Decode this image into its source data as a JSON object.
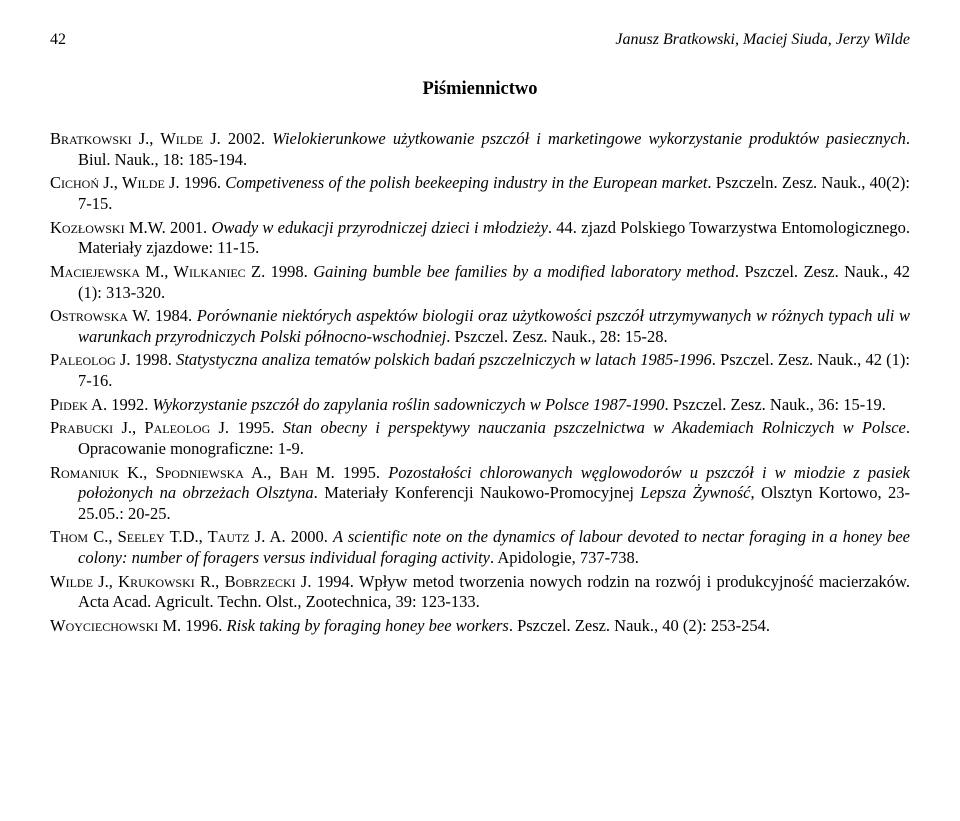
{
  "page_number": "42",
  "running_head": "Janusz Bratkowski, Maciej Siuda, Jerzy Wilde",
  "section_title": "Piśmiennictwo",
  "refs": {
    "r1": {
      "authors": "Bratkowski J., Wilde J.",
      "rest_a": " 2002. ",
      "title": "Wielokierunkowe użytkowanie pszczół i marketingowe wykorzystanie produktów pasiecznych",
      "rest_b": ". Biul. Nauk., 18: 185-194."
    },
    "r2": {
      "authors": "Cichoń J., Wilde J.",
      "rest_a": " 1996. ",
      "title": "Competiveness of the polish beekeeping industry in the European market",
      "rest_b": ". Pszczeln. Zesz. Nauk., 40(2): 7-15."
    },
    "r3": {
      "authors": "Kozłowski M.W.",
      "rest_a": " 2001. ",
      "title": "Owady w edukacji przyrodniczej dzieci i młodzieży",
      "rest_b": ". 44. zjazd Polskiego Towarzystwa Entomologicznego. Materiały zjazdowe: 11-15."
    },
    "r4": {
      "authors": "Maciejewska M., Wilkaniec Z.",
      "rest_a": " 1998. ",
      "title": "Gaining bumble bee families by a modified laboratory method",
      "rest_b": ". Pszczel. Zesz. Nauk., 42 (1): 313-320."
    },
    "r5": {
      "authors": "Ostrowska W.",
      "rest_a": " 1984. ",
      "title": "Porównanie niektórych aspektów biologii oraz użytkowości pszczół utrzymywanych w różnych typach uli w warunkach przyrodniczych Polski północno-wschodniej",
      "rest_b": ". Pszczel. Zesz. Nauk., 28: 15-28."
    },
    "r6": {
      "authors": "Paleolog J.",
      "rest_a": " 1998. ",
      "title": "Statystyczna analiza tematów polskich badań pszczelniczych w latach 1985-1996",
      "rest_b": ". Pszczel. Zesz. Nauk., 42 (1): 7-16."
    },
    "r7": {
      "authors": "Pidek A.",
      "rest_a": " 1992. ",
      "title": "Wykorzystanie pszczół do zapylania roślin sadowniczych w Polsce 1987-1990",
      "rest_b": ". Pszczel. Zesz. Nauk., 36: 15-19."
    },
    "r8": {
      "authors": "Prabucki J., Paleolog J.",
      "rest_a": " 1995. ",
      "title": "Stan obecny i perspektywy nauczania pszczelnictwa w Akademiach Rolniczych w Polsce",
      "rest_b": ". Opracowanie monograficzne: 1-9."
    },
    "r9": {
      "authors": "Romaniuk K., Spodniewska A., Bah M.",
      "rest_a": " 1995. ",
      "title": "Pozostałości chlorowanych węglowodorów u pszczół i w miodzie z pasiek położonych na obrzeżach Olsztyna",
      "rest_b": ". Materiały Konferencji Naukowo-Promocyjnej ",
      "title2": "Lepsza Żywność",
      "rest_c": ", Olsztyn Kortowo, 23-25.05.: 20-25."
    },
    "r10": {
      "authors": "Thom C., Seeley T.D., Tautz J. A.",
      "rest_a": " 2000. ",
      "title": "A scientific note on the dynamics of labour devoted to nectar foraging in a honey bee colony: number of foragers versus individual foraging activity",
      "rest_b": ". Apidologie, 737-738."
    },
    "r11": {
      "authors": "Wilde J., Krukowski R., Bobrzecki J.",
      "rest_a": " 1994. Wpływ metod tworzenia nowych rodzin na rozwój i produkcyjność macierzaków. Acta Acad. Agricult. Techn. Olst., Zootechnica, 39: 123-133."
    },
    "r12": {
      "authors": "Woyciechowski M.",
      "rest_a": " 1996. ",
      "title": "Risk taking by foraging honey bee workers",
      "rest_b": ". Pszczel. Zesz. Nauk., 40 (2): 253-254."
    }
  }
}
